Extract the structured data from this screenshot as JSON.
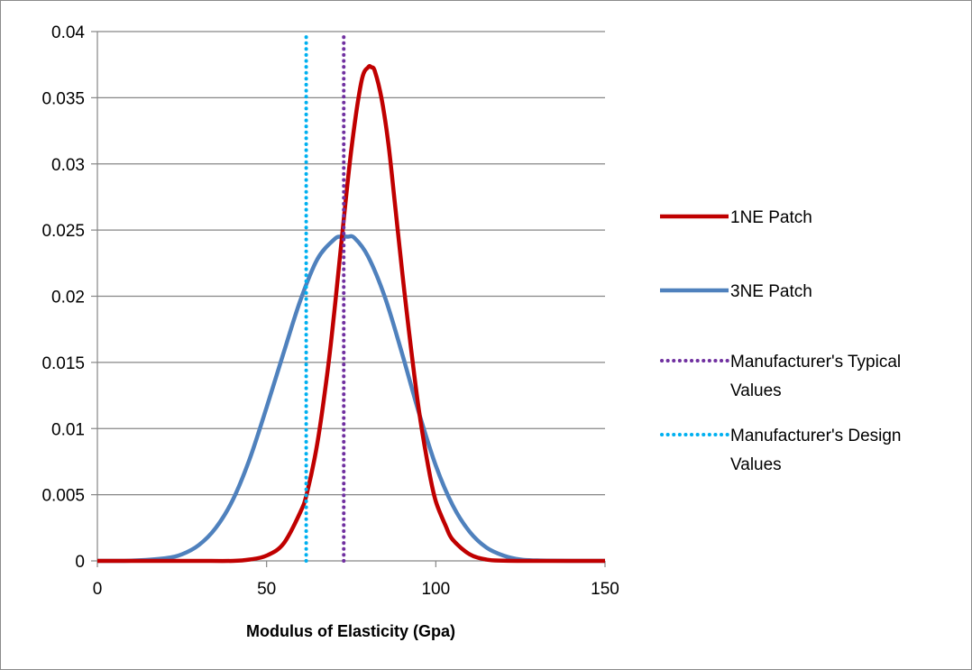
{
  "chart_data": {
    "type": "line",
    "title": "",
    "xlabel": "Modulus of Elasticity (Gpa)",
    "ylabel": "",
    "xlim": [
      0,
      150
    ],
    "ylim": [
      0,
      0.04
    ],
    "x_ticks": [
      0,
      50,
      100,
      150
    ],
    "x_tick_labels": [
      "0",
      "50",
      "100",
      "150"
    ],
    "y_ticks": [
      0,
      0.005,
      0.01,
      0.015,
      0.02,
      0.025,
      0.03,
      0.035,
      0.04
    ],
    "y_tick_labels": [
      "0",
      "0.005",
      "0.01",
      "0.015",
      "0.02",
      "0.025",
      "0.03",
      "0.035",
      "0.04"
    ],
    "grid": "horizontal",
    "legend_position": "right",
    "series": [
      {
        "name": "1NE Patch",
        "color": "#c00000",
        "style": "solid",
        "x": [
          0,
          10,
          20,
          30,
          40,
          45,
          50,
          55,
          60,
          62,
          65,
          68,
          70,
          72,
          75,
          78,
          80,
          81,
          82,
          84,
          86,
          88,
          90,
          92,
          95,
          98,
          100,
          103,
          105,
          110,
          115,
          120,
          130,
          140,
          150
        ],
        "y": [
          0,
          0,
          0,
          0,
          0,
          0.0001,
          0.0004,
          0.0013,
          0.0037,
          0.0052,
          0.0089,
          0.0143,
          0.0188,
          0.0238,
          0.031,
          0.0362,
          0.0373,
          0.0373,
          0.037,
          0.0349,
          0.0315,
          0.0268,
          0.022,
          0.0175,
          0.0114,
          0.0068,
          0.0045,
          0.0026,
          0.0016,
          0.0005,
          0.0001,
          2e-05,
          0,
          0,
          0
        ]
      },
      {
        "name": "3NE Patch",
        "color": "#4f81bd",
        "style": "solid",
        "x": [
          0,
          10,
          20,
          25,
          30,
          35,
          40,
          45,
          50,
          55,
          60,
          65,
          70,
          72,
          74,
          76,
          80,
          85,
          90,
          95,
          100,
          105,
          110,
          115,
          120,
          125,
          130,
          140,
          150
        ],
        "y": [
          0,
          2e-05,
          0.0002,
          0.0005,
          0.0012,
          0.0025,
          0.0046,
          0.0077,
          0.0116,
          0.0157,
          0.0197,
          0.0228,
          0.0243,
          0.0245,
          0.0245,
          0.0244,
          0.023,
          0.0199,
          0.0157,
          0.0112,
          0.0072,
          0.0042,
          0.0022,
          0.001,
          0.0004,
          0.0001,
          3e-05,
          0,
          0
        ]
      },
      {
        "name": "Manufacturer's Typical Values",
        "color": "#7030a0",
        "style": "dotted",
        "x": [
          72.8,
          72.8
        ],
        "y": [
          0,
          0.0396
        ]
      },
      {
        "name": "Manufacturer's Design Values",
        "color": "#00b0f0",
        "style": "dotted",
        "x": [
          61.7,
          61.7
        ],
        "y": [
          0,
          0.0396
        ]
      }
    ]
  },
  "legend": {
    "items": [
      {
        "lines": [
          "1NE Patch"
        ]
      },
      {
        "lines": [
          "3NE Patch"
        ]
      },
      {
        "lines": [
          "Manufacturer's Typical",
          "Values"
        ]
      },
      {
        "lines": [
          "Manufacturer's Design",
          "Values"
        ]
      }
    ]
  }
}
